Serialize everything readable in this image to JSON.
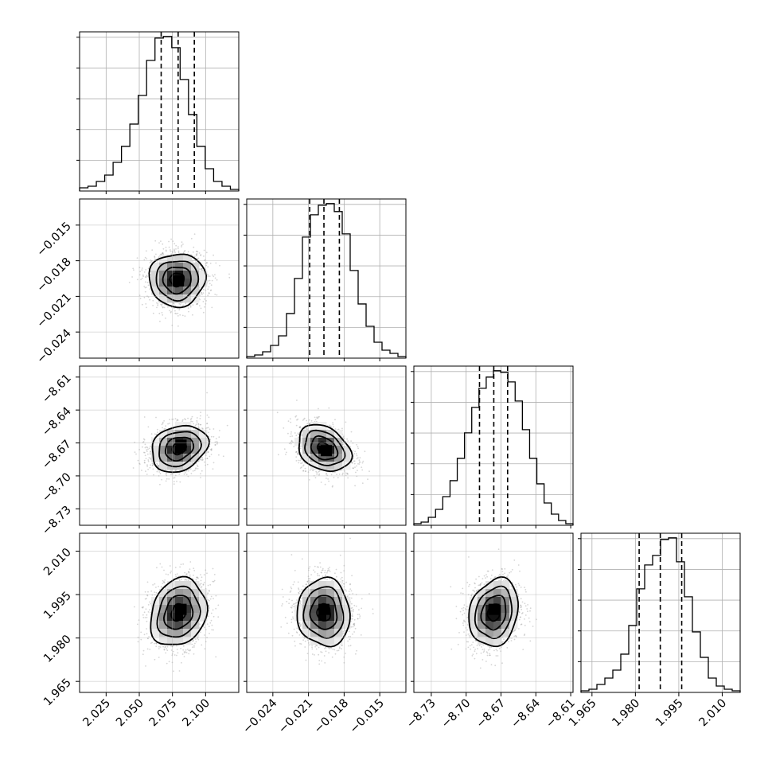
{
  "chart_data": {
    "type": "corner",
    "parameters": [
      {
        "range": [
          2.005,
          2.125
        ],
        "ticks": [
          2.025,
          2.05,
          2.075,
          2.1
        ],
        "tick_labels": [
          "2.025",
          "2.050",
          "2.075",
          "2.100"
        ],
        "histogram": [
          2,
          3,
          6,
          10,
          18,
          28,
          42,
          60,
          82,
          96,
          97,
          90,
          70,
          48,
          28,
          14,
          6,
          3,
          1
        ],
        "quantiles": [
          2.0665,
          2.0793,
          2.0915
        ]
      },
      {
        "range": [
          -0.0262,
          -0.0128
        ],
        "ticks": [
          -0.024,
          -0.021,
          -0.018,
          -0.015
        ],
        "tick_labels": [
          "−0.024",
          "−0.021",
          "−0.018",
          "−0.015"
        ],
        "histogram": [
          1,
          2,
          4,
          8,
          14,
          28,
          50,
          76,
          90,
          96,
          97,
          92,
          78,
          55,
          34,
          20,
          10,
          5,
          3,
          1
        ],
        "quantiles": [
          -0.0209,
          -0.0197,
          -0.0184
        ],
        "ylim": [
          -0.0262,
          -0.0128
        ],
        "y_ticks": [
          -0.015,
          -0.018,
          -0.021,
          -0.024
        ],
        "y_tick_labels": [
          "−0.015",
          "−0.018",
          "−0.021",
          "−0.024"
        ]
      },
      {
        "range": [
          -8.745,
          -8.608
        ],
        "ticks": [
          -8.73,
          -8.7,
          -8.67,
          -8.64,
          -8.61
        ],
        "tick_labels": [
          "−8.73",
          "−8.70",
          "−8.67",
          "−8.64",
          "−8.61"
        ],
        "histogram": [
          1,
          2,
          5,
          10,
          18,
          28,
          42,
          58,
          74,
          86,
          93,
          97,
          96,
          90,
          78,
          60,
          42,
          26,
          14,
          7,
          3,
          1
        ],
        "quantiles": [
          -8.6885,
          -8.6762,
          -8.6643
        ],
        "ylim": [
          -8.745,
          -8.6
        ],
        "y_ticks": [
          -8.61,
          -8.64,
          -8.67,
          -8.7,
          -8.73
        ],
        "y_tick_labels": [
          "−8.61",
          "−8.64",
          "−8.67",
          "−8.70",
          "−8.73"
        ]
      },
      {
        "range": [
          1.9612,
          2.0162
        ],
        "ticks": [
          1.965,
          1.98,
          1.995,
          2.01
        ],
        "tick_labels": [
          "1.965",
          "1.980",
          "1.995",
          "2.010"
        ],
        "histogram": [
          1,
          2,
          5,
          9,
          14,
          24,
          42,
          65,
          80,
          86,
          96,
          97,
          82,
          60,
          38,
          22,
          9,
          4,
          2,
          1
        ],
        "quantiles": [
          1.9813,
          1.9886,
          1.996
        ],
        "ylim": [
          1.9612,
          2.0162
        ],
        "y_ticks": [
          2.01,
          1.995,
          1.98,
          1.965
        ],
        "y_tick_labels": [
          "2.010",
          "1.995",
          "1.980",
          "1.965"
        ]
      }
    ],
    "pairs": [
      {
        "row": 1,
        "col": 0,
        "mean": [
          2.0785,
          -0.0196
        ],
        "sd": [
          0.0105,
          0.0011
        ],
        "rho": 0.02,
        "core": [
          2.0795,
          -0.0197
        ]
      },
      {
        "row": 2,
        "col": 0,
        "mean": [
          2.08,
          -8.675
        ],
        "sd": [
          0.0105,
          0.0105
        ],
        "rho": 0.22,
        "core": [
          2.0815,
          -8.672
        ]
      },
      {
        "row": 2,
        "col": 1,
        "mean": [
          -0.0197,
          -8.675
        ],
        "sd": [
          0.0011,
          0.0105
        ],
        "rho": -0.28,
        "core": [
          -0.0195,
          -8.677
        ]
      },
      {
        "row": 3,
        "col": 0,
        "mean": [
          2.0795,
          1.9888
        ],
        "sd": [
          0.0105,
          0.0058
        ],
        "rho": 0.18,
        "core": [
          2.0815,
          1.9899
        ]
      },
      {
        "row": 3,
        "col": 1,
        "mean": [
          -0.0197,
          1.9888
        ],
        "sd": [
          0.0011,
          0.0058
        ],
        "rho": -0.04,
        "core": [
          -0.0197,
          1.9899
        ]
      },
      {
        "row": 3,
        "col": 2,
        "mean": [
          -8.676,
          1.9888
        ],
        "sd": [
          0.0105,
          0.0058
        ],
        "rho": 0.18,
        "core": [
          -8.676,
          1.9899
        ]
      }
    ]
  }
}
